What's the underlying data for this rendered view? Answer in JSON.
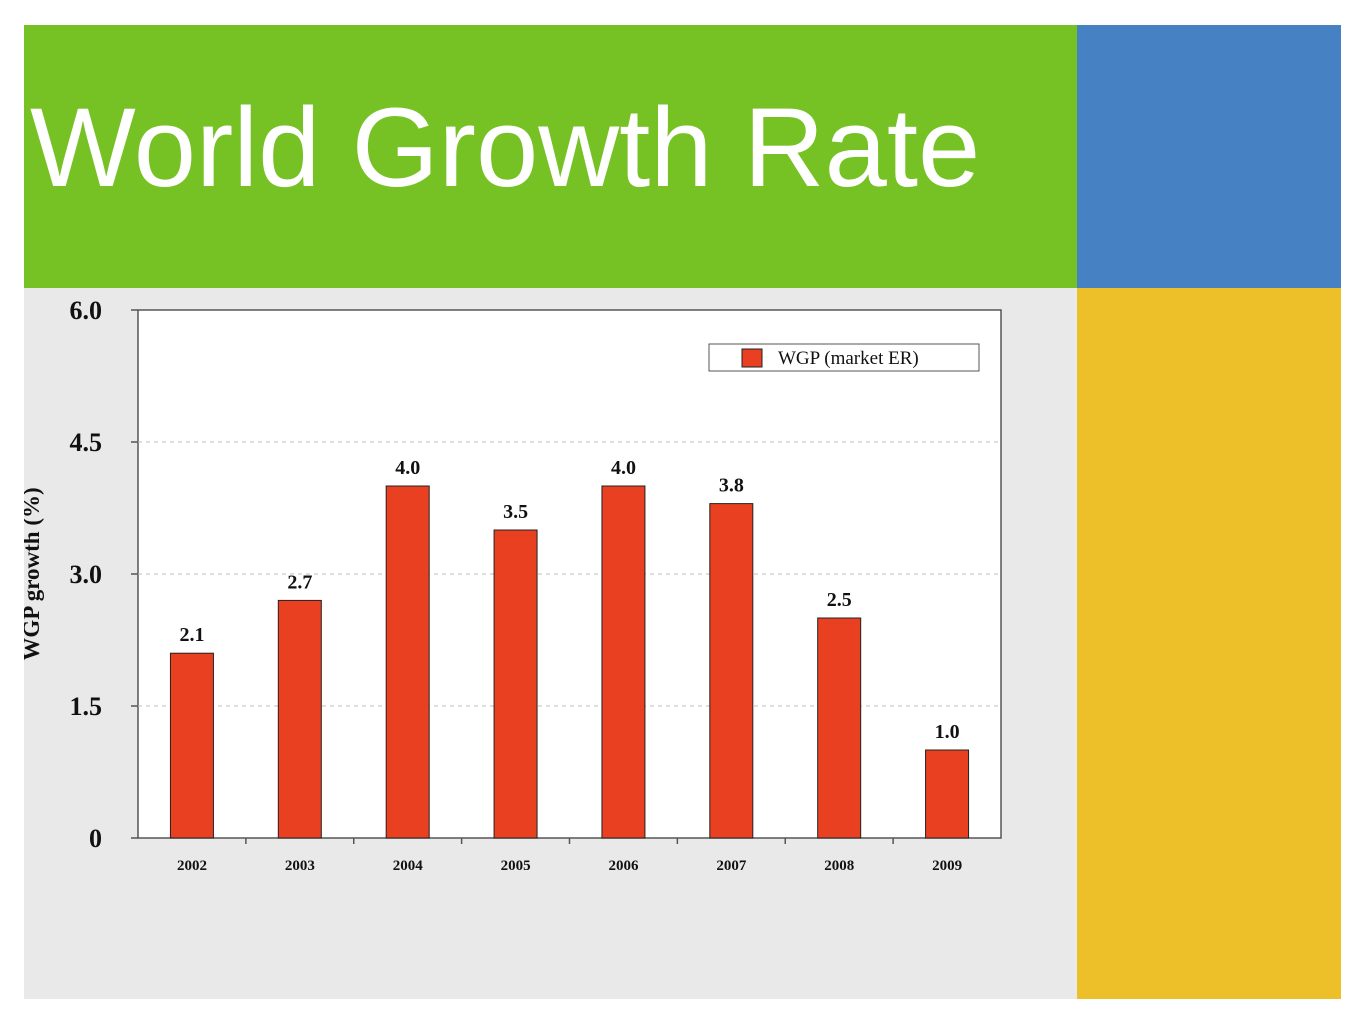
{
  "slide": {
    "title": "World Growth Rate",
    "colors": {
      "title_band": "#76c225",
      "title_text": "#ffffff",
      "accent_blue": "#4682c3",
      "accent_yellow": "#edbf28",
      "content_bg": "#e9e9e9"
    }
  },
  "chart_data": {
    "type": "bar",
    "title": "",
    "xlabel": "",
    "ylabel": "WGP growth (%)",
    "categories": [
      "2002",
      "2003",
      "2004",
      "2005",
      "2006",
      "2007",
      "2008",
      "2009"
    ],
    "series": [
      {
        "name": "WGP (market ER)",
        "values": [
          2.1,
          2.7,
          4.0,
          3.5,
          4.0,
          3.8,
          2.5,
          1.0
        ],
        "color": "#e84020"
      }
    ],
    "data_labels": [
      "2.1",
      "2.7",
      "4.0",
      "3.5",
      "4.0",
      "3.8",
      "2.5",
      "1.0"
    ],
    "ylim": [
      0,
      6.0
    ],
    "yticks": [
      0,
      1.5,
      3.0,
      4.5,
      6.0
    ],
    "ytick_labels": [
      "0",
      "1.5",
      "3.0",
      "4.5",
      "6.0"
    ],
    "grid": "dashed horizontal",
    "legend_position": "top-right"
  }
}
